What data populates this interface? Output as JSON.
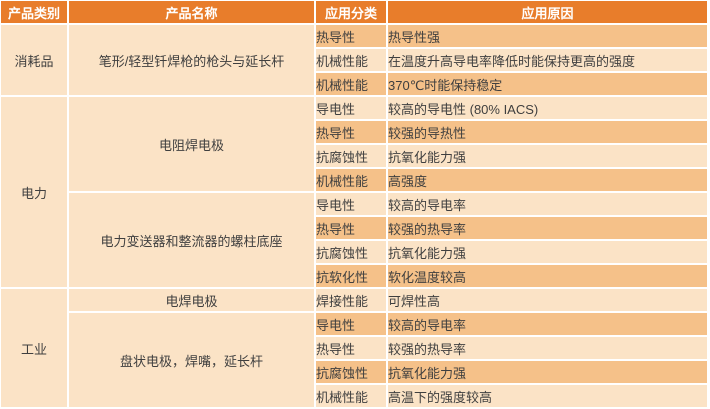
{
  "table": {
    "headers": [
      "产品类别",
      "产品名称",
      "应用分类",
      "应用原因"
    ],
    "categories": [
      {
        "name": "消耗品",
        "products": [
          {
            "name": "笔形/轻型钎焊枪的枪头与延长杆",
            "rows": [
              {
                "type": "热导性",
                "reason": "热导性强"
              },
              {
                "type": "机械性能",
                "reason": "在温度升高导电率降低时能保持更高的强度"
              },
              {
                "type": "机械性能",
                "reason": "370℃时能保持稳定"
              }
            ]
          }
        ]
      },
      {
        "name": "电力",
        "products": [
          {
            "name": "电阻焊电极",
            "rows": [
              {
                "type": "导电性",
                "reason": "较高的导电性 (80% IACS)"
              },
              {
                "type": "热导性",
                "reason": "较强的导热性"
              },
              {
                "type": "抗腐蚀性",
                "reason": "抗氧化能力强"
              },
              {
                "type": "机械性能",
                "reason": "高强度"
              }
            ]
          },
          {
            "name": "电力变送器和整流器的螺柱底座",
            "rows": [
              {
                "type": "导电性",
                "reason": "较高的导电率"
              },
              {
                "type": "热导性",
                "reason": "较强的热导率"
              },
              {
                "type": "抗腐蚀性",
                "reason": "抗氧化能力强"
              },
              {
                "type": "抗软化性",
                "reason": "软化温度较高"
              }
            ]
          }
        ]
      },
      {
        "name": "工业",
        "products": [
          {
            "name": "电焊电极",
            "rows": [
              {
                "type": "焊接性能",
                "reason": "可焊性高"
              }
            ]
          },
          {
            "name": "盘状电极，焊嘴，延长杆",
            "rows": [
              {
                "type": "导电性",
                "reason": "较高的导电率"
              },
              {
                "type": "热导性",
                "reason": "较强的热导率"
              },
              {
                "type": "抗腐蚀性",
                "reason": "抗氧化能力强"
              },
              {
                "type": "机械性能",
                "reason": "高温下的强度较高"
              }
            ]
          }
        ]
      }
    ],
    "colors": {
      "header_bg": "#E87D2B",
      "header_text": "#FFFFFF",
      "row_light": "#FBE3C6",
      "row_dark": "#F5C189",
      "merged_bg": "#FBE3C6",
      "grid": "#FFFFFF",
      "text": "#3F3F3F"
    }
  }
}
